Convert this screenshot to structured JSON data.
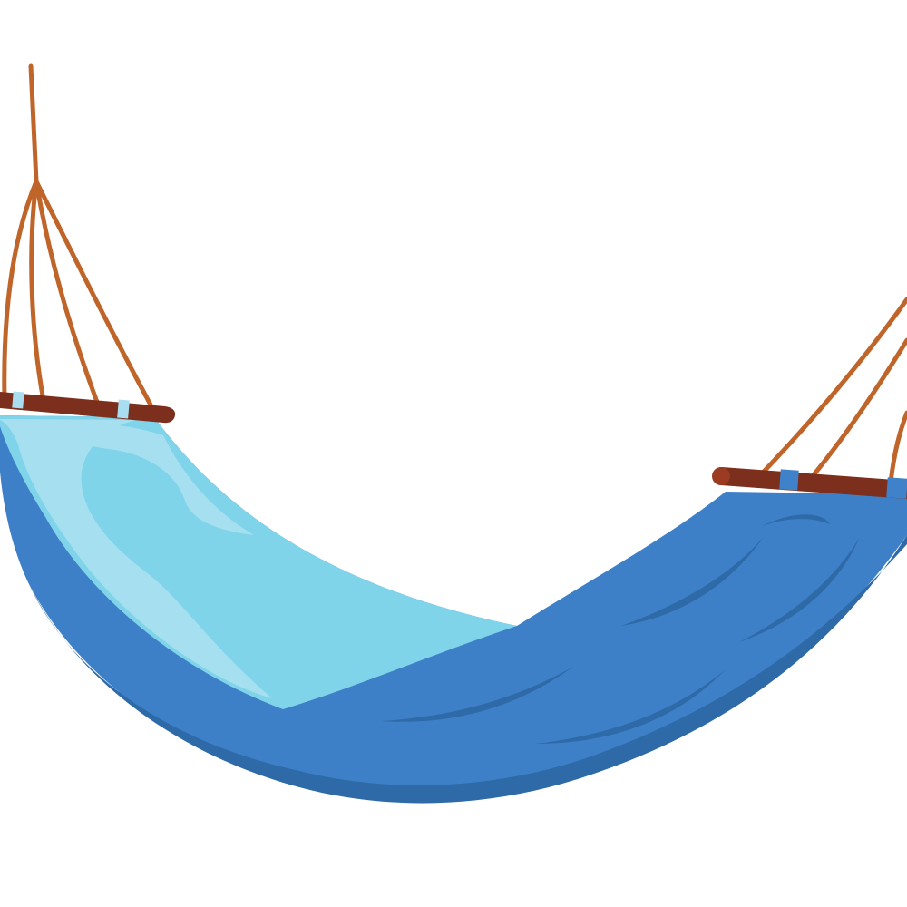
{
  "illustration": {
    "subject": "hammock-icon",
    "colors": {
      "background": "#ffffff",
      "rope": "#c0652a",
      "spreader_bar": "#7b2f1c",
      "spreader_end": "#9a3b22",
      "bar_band_light": "#a9def0",
      "bar_band_blue": "#3f82c9",
      "fabric_inner_light": "#a6e0f0",
      "fabric_inner": "#80d4ea",
      "fabric_outer": "#3d80c8",
      "fabric_shadow": "#2f6aa8"
    }
  }
}
